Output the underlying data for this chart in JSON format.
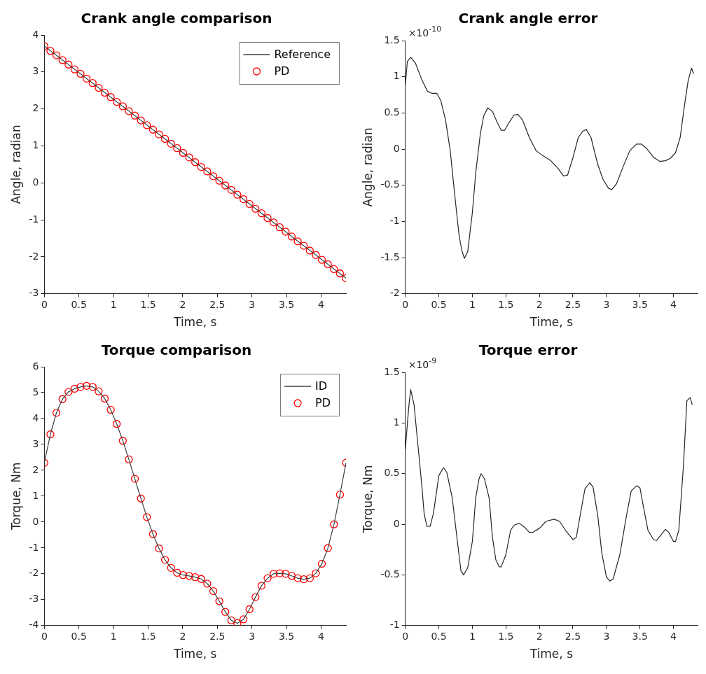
{
  "chart_data": [
    {
      "type": "line",
      "title": "Crank angle comparison",
      "xlabel": "Time, s",
      "ylabel": "Angle, radian",
      "xlim": [
        0,
        4.36
      ],
      "xticks": [
        0,
        0.5,
        1,
        1.5,
        2,
        2.5,
        3,
        3.5,
        4
      ],
      "ylim": [
        -3,
        4
      ],
      "yticks": [
        -3,
        -2,
        -1,
        0,
        1,
        2,
        3,
        4
      ],
      "grid": false,
      "legend": "top right",
      "x": [
        0,
        0.087,
        0.174,
        0.262,
        0.349,
        0.436,
        0.523,
        0.61,
        0.698,
        0.785,
        0.872,
        0.959,
        1.046,
        1.134,
        1.221,
        1.308,
        1.395,
        1.482,
        1.57,
        1.657,
        1.744,
        1.831,
        1.918,
        2.006,
        2.093,
        2.18,
        2.267,
        2.354,
        2.442,
        2.529,
        2.616,
        2.703,
        2.79,
        2.878,
        2.965,
        3.052,
        3.139,
        3.226,
        3.314,
        3.401,
        3.488,
        3.575,
        3.662,
        3.75,
        3.837,
        3.924,
        4.011,
        4.098,
        4.186,
        4.273,
        4.36
      ],
      "series": [
        {
          "name": "Reference",
          "type": "line",
          "color": "#404040",
          "marker": "none",
          "line_style": "solid",
          "x": [
            0,
            4.36
          ],
          "values": [
            3.7,
            -2.58
          ]
        },
        {
          "name": "PD",
          "type": "scatter",
          "color": "#ff0000",
          "marker": "circle",
          "values": [
            3.7,
            3.57,
            3.45,
            3.32,
            3.2,
            3.07,
            2.95,
            2.82,
            2.7,
            2.57,
            2.44,
            2.32,
            2.19,
            2.07,
            1.94,
            1.82,
            1.69,
            1.56,
            1.44,
            1.31,
            1.19,
            1.06,
            0.94,
            0.81,
            0.69,
            0.56,
            0.43,
            0.31,
            0.18,
            0.06,
            -0.07,
            -0.19,
            -0.32,
            -0.44,
            -0.57,
            -0.7,
            -0.82,
            -0.95,
            -1.07,
            -1.2,
            -1.32,
            -1.45,
            -1.58,
            -1.7,
            -1.83,
            -1.95,
            -2.08,
            -2.2,
            -2.33,
            -2.45,
            -2.58
          ]
        }
      ]
    },
    {
      "type": "line",
      "title": "Crank angle error",
      "xlabel": "Time, s",
      "ylabel": "Angle, radian",
      "annotations": [
        "×10$^{-10}$"
      ],
      "xlim": [
        0,
        4.36
      ],
      "xticks": [
        0,
        0.5,
        1,
        1.5,
        2,
        2.5,
        3,
        3.5,
        4
      ],
      "ylim": [
        -2,
        1.5
      ],
      "yticks": [
        -2,
        -1.5,
        -1,
        -0.5,
        0,
        0.5,
        1,
        1.5
      ],
      "grid": false,
      "series": [
        {
          "type": "line",
          "color": "#262626",
          "marker": "none",
          "line_style": "solid",
          "x": [
            0,
            0.03,
            0.08,
            0.15,
            0.25,
            0.33,
            0.4,
            0.47,
            0.53,
            0.6,
            0.67,
            0.73,
            0.8,
            0.84,
            0.88,
            0.93,
            1.0,
            1.05,
            1.12,
            1.17,
            1.23,
            1.3,
            1.37,
            1.43,
            1.48,
            1.55,
            1.62,
            1.68,
            1.75,
            1.85,
            1.95,
            2.05,
            2.17,
            2.28,
            2.36,
            2.42,
            2.5,
            2.58,
            2.65,
            2.7,
            2.77,
            2.87,
            2.95,
            3.03,
            3.08,
            3.15,
            3.25,
            3.35,
            3.45,
            3.52,
            3.6,
            3.7,
            3.8,
            3.88,
            3.95,
            4.03,
            4.1,
            4.17,
            4.22,
            4.27,
            4.3
          ],
          "values": [
            0.89,
            1.21,
            1.27,
            1.19,
            0.95,
            0.8,
            0.77,
            0.77,
            0.67,
            0.4,
            -0.02,
            -0.57,
            -1.18,
            -1.39,
            -1.51,
            -1.42,
            -0.88,
            -0.33,
            0.22,
            0.46,
            0.57,
            0.52,
            0.37,
            0.26,
            0.26,
            0.37,
            0.47,
            0.48,
            0.4,
            0.16,
            -0.02,
            -0.09,
            -0.16,
            -0.27,
            -0.37,
            -0.36,
            -0.12,
            0.16,
            0.25,
            0.27,
            0.16,
            -0.21,
            -0.42,
            -0.54,
            -0.56,
            -0.48,
            -0.24,
            -0.02,
            0.07,
            0.07,
            0.01,
            -0.11,
            -0.17,
            -0.16,
            -0.13,
            -0.05,
            0.16,
            0.64,
            0.95,
            1.12,
            1.04
          ]
        }
      ]
    },
    {
      "type": "line",
      "title": "Torque comparison",
      "xlabel": "Time, s",
      "ylabel": "Torque, Nm",
      "xlim": [
        0,
        4.36
      ],
      "xticks": [
        0,
        0.5,
        1,
        1.5,
        2,
        2.5,
        3,
        3.5,
        4
      ],
      "ylim": [
        -4,
        6
      ],
      "yticks": [
        -4,
        -3,
        -2,
        -1,
        0,
        1,
        2,
        3,
        4,
        5,
        6
      ],
      "grid": false,
      "legend": "top right",
      "x": [
        0,
        0.087,
        0.174,
        0.262,
        0.349,
        0.436,
        0.523,
        0.61,
        0.698,
        0.785,
        0.872,
        0.959,
        1.046,
        1.134,
        1.221,
        1.308,
        1.395,
        1.482,
        1.57,
        1.657,
        1.744,
        1.831,
        1.918,
        2.006,
        2.093,
        2.18,
        2.267,
        2.354,
        2.442,
        2.529,
        2.616,
        2.703,
        2.79,
        2.878,
        2.965,
        3.052,
        3.139,
        3.226,
        3.314,
        3.401,
        3.488,
        3.575,
        3.662,
        3.75,
        3.837,
        3.924,
        4.011,
        4.098,
        4.186,
        4.273,
        4.36
      ],
      "series": [
        {
          "name": "ID",
          "type": "line",
          "color": "#404040",
          "marker": "none",
          "line_style": "solid",
          "values": [
            2.29,
            3.39,
            4.22,
            4.75,
            5.03,
            5.15,
            5.22,
            5.26,
            5.22,
            5.05,
            4.77,
            4.34,
            3.79,
            3.14,
            2.42,
            1.67,
            0.91,
            0.19,
            -0.47,
            -1.02,
            -1.46,
            -1.77,
            -1.96,
            -2.05,
            -2.08,
            -2.13,
            -2.2,
            -2.38,
            -2.67,
            -3.06,
            -3.47,
            -3.8,
            -3.91,
            -3.76,
            -3.37,
            -2.9,
            -2.46,
            -2.17,
            -2,
            -1.98,
            -2,
            -2.08,
            -2.17,
            -2.21,
            -2.17,
            -1.98,
            -1.61,
            -1.01,
            -0.09,
            1.06,
            2.29
          ]
        },
        {
          "name": "PD",
          "type": "scatter",
          "color": "#ff0000",
          "marker": "circle",
          "values": [
            2.29,
            3.39,
            4.22,
            4.75,
            5.03,
            5.15,
            5.22,
            5.26,
            5.22,
            5.05,
            4.77,
            4.34,
            3.79,
            3.14,
            2.42,
            1.67,
            0.91,
            0.19,
            -0.47,
            -1.02,
            -1.46,
            -1.77,
            -1.96,
            -2.05,
            -2.08,
            -2.13,
            -2.2,
            -2.38,
            -2.67,
            -3.06,
            -3.47,
            -3.8,
            -3.91,
            -3.76,
            -3.37,
            -2.9,
            -2.46,
            -2.17,
            -2,
            -1.98,
            -2,
            -2.08,
            -2.17,
            -2.21,
            -2.17,
            -1.98,
            -1.61,
            -1.01,
            -0.09,
            1.06,
            2.29
          ]
        }
      ]
    },
    {
      "type": "line",
      "title": "Torque error",
      "xlabel": "Time, s",
      "ylabel": "Torque, Nm",
      "annotations": [
        "×10$^{-9}$"
      ],
      "xlim": [
        0,
        4.36
      ],
      "xticks": [
        0,
        0.5,
        1,
        1.5,
        2,
        2.5,
        3,
        3.5,
        4
      ],
      "ylim": [
        -1,
        1.5
      ],
      "yticks": [
        -1,
        -0.5,
        0,
        0.5,
        1,
        1.5
      ],
      "grid": false,
      "series": [
        {
          "type": "line",
          "color": "#262626",
          "marker": "none",
          "line_style": "solid",
          "x": [
            0,
            0.05,
            0.08,
            0.13,
            0.2,
            0.25,
            0.28,
            0.32,
            0.37,
            0.42,
            0.5,
            0.57,
            0.62,
            0.7,
            0.75,
            0.8,
            0.83,
            0.87,
            0.93,
            1.0,
            1.05,
            1.1,
            1.13,
            1.18,
            1.25,
            1.3,
            1.35,
            1.4,
            1.43,
            1.5,
            1.57,
            1.62,
            1.7,
            1.78,
            1.85,
            1.9,
            2.0,
            2.1,
            2.22,
            2.3,
            2.4,
            2.5,
            2.55,
            2.62,
            2.68,
            2.75,
            2.8,
            2.87,
            2.93,
            3.0,
            3.05,
            3.1,
            3.2,
            3.3,
            3.37,
            3.45,
            3.5,
            3.55,
            3.62,
            3.7,
            3.75,
            3.82,
            3.88,
            3.93,
            4.0,
            4.03,
            4.08,
            4.15,
            4.2,
            4.25,
            4.28
          ],
          "values": [
            0.74,
            1.15,
            1.33,
            1.18,
            0.7,
            0.35,
            0.11,
            -0.02,
            -0.02,
            0.11,
            0.48,
            0.56,
            0.51,
            0.26,
            -0.02,
            -0.3,
            -0.46,
            -0.5,
            -0.43,
            -0.17,
            0.26,
            0.45,
            0.5,
            0.45,
            0.26,
            -0.13,
            -0.35,
            -0.42,
            -0.42,
            -0.3,
            -0.06,
            -0.01,
            0.01,
            -0.03,
            -0.08,
            -0.08,
            -0.04,
            0.03,
            0.05,
            0.03,
            -0.07,
            -0.15,
            -0.13,
            0.13,
            0.35,
            0.41,
            0.37,
            0.09,
            -0.28,
            -0.52,
            -0.56,
            -0.54,
            -0.3,
            0.09,
            0.33,
            0.38,
            0.36,
            0.18,
            -0.06,
            -0.15,
            -0.16,
            -0.1,
            -0.05,
            -0.08,
            -0.17,
            -0.17,
            -0.06,
            0.59,
            1.22,
            1.25,
            1.18
          ]
        }
      ]
    }
  ]
}
